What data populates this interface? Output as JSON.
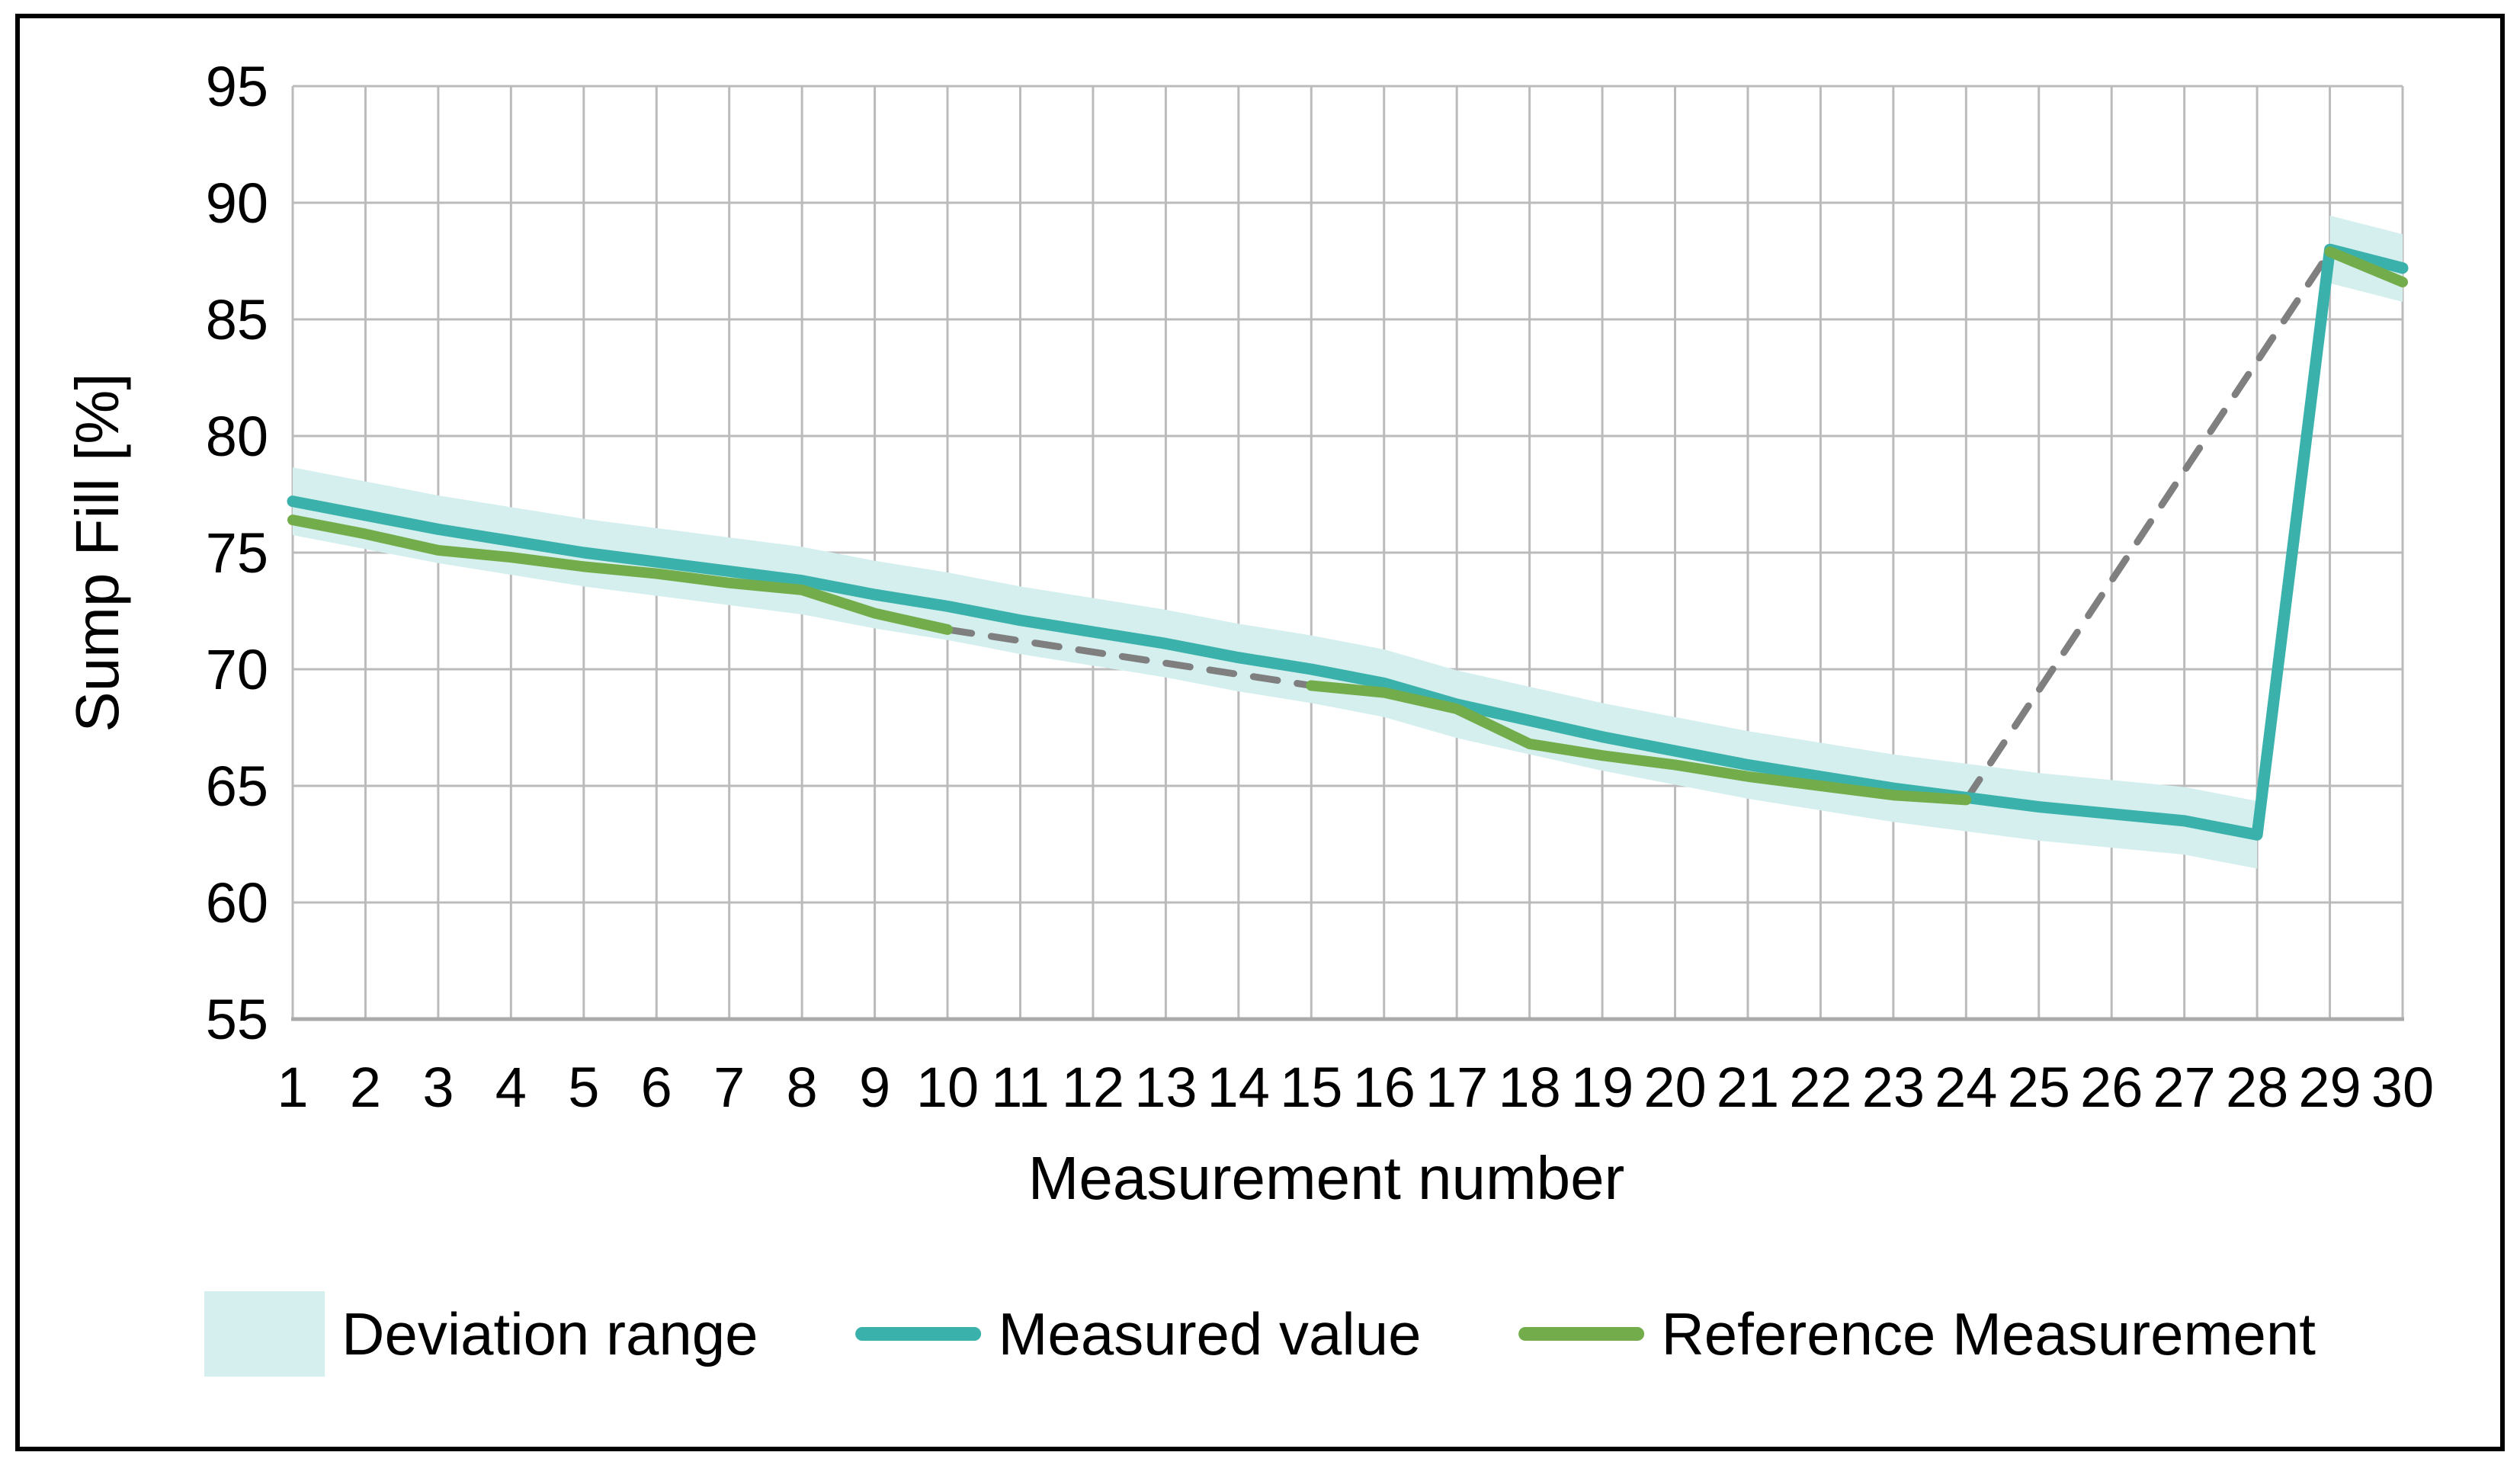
{
  "chart_data": {
    "type": "line",
    "xlabel": "Measurement number",
    "ylabel": "Sump Fill [%]",
    "ylim": [
      55,
      95
    ],
    "yticks": [
      55,
      60,
      65,
      70,
      75,
      80,
      85,
      90,
      95
    ],
    "xticks": [
      1,
      2,
      3,
      4,
      5,
      6,
      7,
      8,
      9,
      10,
      11,
      12,
      13,
      14,
      15,
      16,
      17,
      18,
      19,
      20,
      21,
      22,
      23,
      24,
      25,
      26,
      27,
      28,
      29,
      30
    ],
    "grid": true,
    "legend_position": "bottom",
    "x": [
      1,
      2,
      3,
      4,
      5,
      6,
      7,
      8,
      9,
      10,
      11,
      12,
      13,
      14,
      15,
      16,
      17,
      18,
      19,
      20,
      21,
      22,
      23,
      24,
      25,
      26,
      27,
      28,
      29,
      30
    ],
    "series": [
      {
        "name": "Deviation range",
        "type": "band",
        "color": "#D5EFEF",
        "half_width": 1.45,
        "around": "Measured value",
        "segments": [
          [
            1,
            28
          ],
          [
            29,
            30
          ]
        ]
      },
      {
        "name": "Measured value",
        "type": "line",
        "color": "#3BB1AB",
        "values": [
          77.2,
          76.6,
          76.0,
          75.5,
          75.0,
          74.6,
          74.2,
          73.8,
          73.2,
          72.7,
          72.1,
          71.6,
          71.1,
          70.5,
          70.0,
          69.4,
          68.5,
          67.8,
          67.1,
          66.5,
          65.9,
          65.4,
          64.9,
          64.5,
          64.1,
          63.8,
          63.5,
          62.9,
          88.0,
          87.2
        ]
      },
      {
        "name": "Reference Measurement",
        "type": "line",
        "color": "#73AD4B",
        "values": [
          76.4,
          75.8,
          75.1,
          74.8,
          74.4,
          74.1,
          73.7,
          73.4,
          72.4,
          71.7,
          null,
          null,
          null,
          null,
          69.3,
          69.0,
          68.3,
          66.8,
          66.3,
          65.9,
          65.4,
          65.0,
          64.6,
          64.4,
          null,
          null,
          null,
          null,
          87.9,
          86.6
        ]
      }
    ],
    "gap_connectors": {
      "color": "#7F7F7F",
      "style": "dashed",
      "segments": [
        {
          "x1": 10,
          "y1": 71.7,
          "x2": 15,
          "y2": 69.3
        },
        {
          "x1": 24,
          "y1": 64.4,
          "x2": 29,
          "y2": 87.9
        }
      ]
    },
    "colors": {
      "gridline": "#BBBBBB",
      "axis_line": "#AAAAAA",
      "tick_text": "#000000",
      "frame_border": "#000000",
      "background": "#FFFFFF"
    },
    "legend": {
      "items": [
        {
          "label": "Deviation range",
          "swatch": "square",
          "color": "#D5EFEF"
        },
        {
          "label": "Measured value",
          "swatch": "line",
          "color": "#3BB1AB"
        },
        {
          "label": "Reference Measurement",
          "swatch": "line",
          "color": "#73AD4B"
        }
      ]
    }
  }
}
